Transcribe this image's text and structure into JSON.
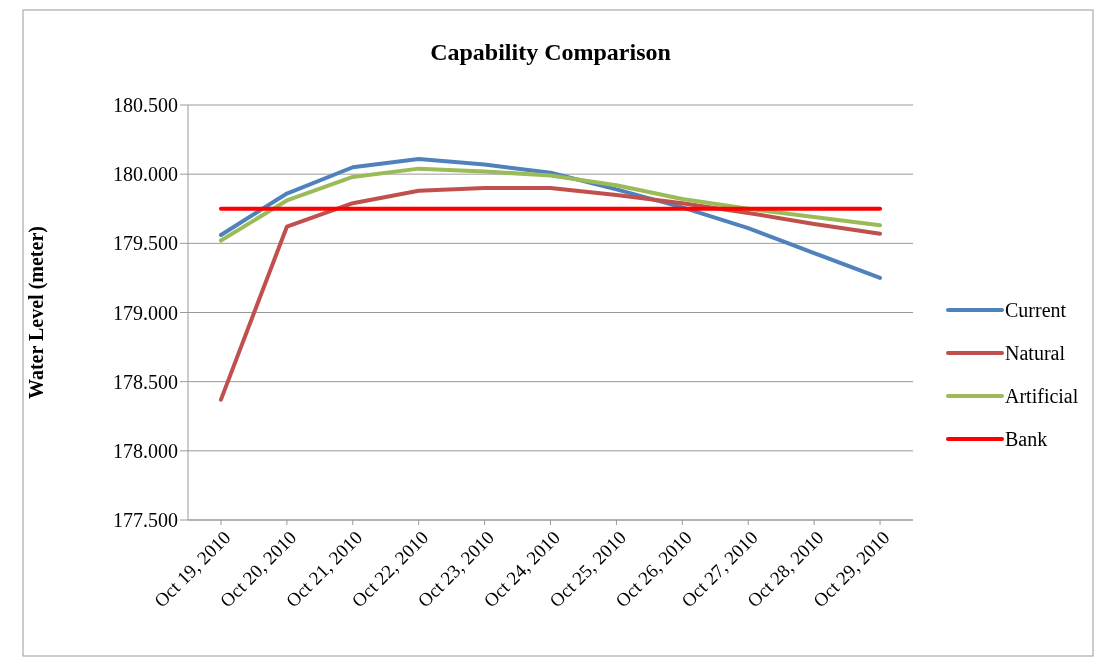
{
  "chart_data": {
    "type": "line",
    "title": "Capability Comparison",
    "ylabel": "Water Level (meter)",
    "categories": [
      "Oct 19, 2010",
      "Oct 20, 2010",
      "Oct 21, 2010",
      "Oct 22, 2010",
      "Oct 23, 2010",
      "Oct 24, 2010",
      "Oct 25, 2010",
      "Oct 26, 2010",
      "Oct 27, 2010",
      "Oct 28, 2010",
      "Oct 29, 2010"
    ],
    "series": [
      {
        "name": "Current",
        "color": "#4f81bd",
        "values": [
          179.56,
          179.86,
          180.05,
          180.11,
          180.07,
          180.01,
          179.89,
          179.76,
          179.61,
          179.43,
          179.25
        ]
      },
      {
        "name": "Natural",
        "color": "#c0504d",
        "values": [
          178.37,
          179.62,
          179.79,
          179.88,
          179.9,
          179.9,
          179.85,
          179.79,
          179.72,
          179.64,
          179.57
        ]
      },
      {
        "name": "Artificial",
        "color": "#9bbb59",
        "values": [
          179.52,
          179.81,
          179.98,
          180.04,
          180.02,
          179.99,
          179.92,
          179.82,
          179.75,
          179.69,
          179.63
        ]
      },
      {
        "name": "Bank",
        "color": "#ff0000",
        "values": [
          179.75,
          179.75,
          179.75,
          179.75,
          179.75,
          179.75,
          179.75,
          179.75,
          179.75,
          179.75,
          179.75
        ]
      }
    ],
    "ylim": [
      177.5,
      180.5
    ],
    "yticks": [
      {
        "value": 177.5,
        "label": "177.500"
      },
      {
        "value": 178,
        "label": "178.000"
      },
      {
        "value": 178.5,
        "label": "178.500"
      },
      {
        "value": 179,
        "label": "179.000"
      },
      {
        "value": 179.5,
        "label": "179.500"
      },
      {
        "value": 180,
        "label": "180.000"
      },
      {
        "value": 180.5,
        "label": "180.500"
      }
    ],
    "grid": "y",
    "legend": "right",
    "marker": "none",
    "line_style": "solid"
  }
}
